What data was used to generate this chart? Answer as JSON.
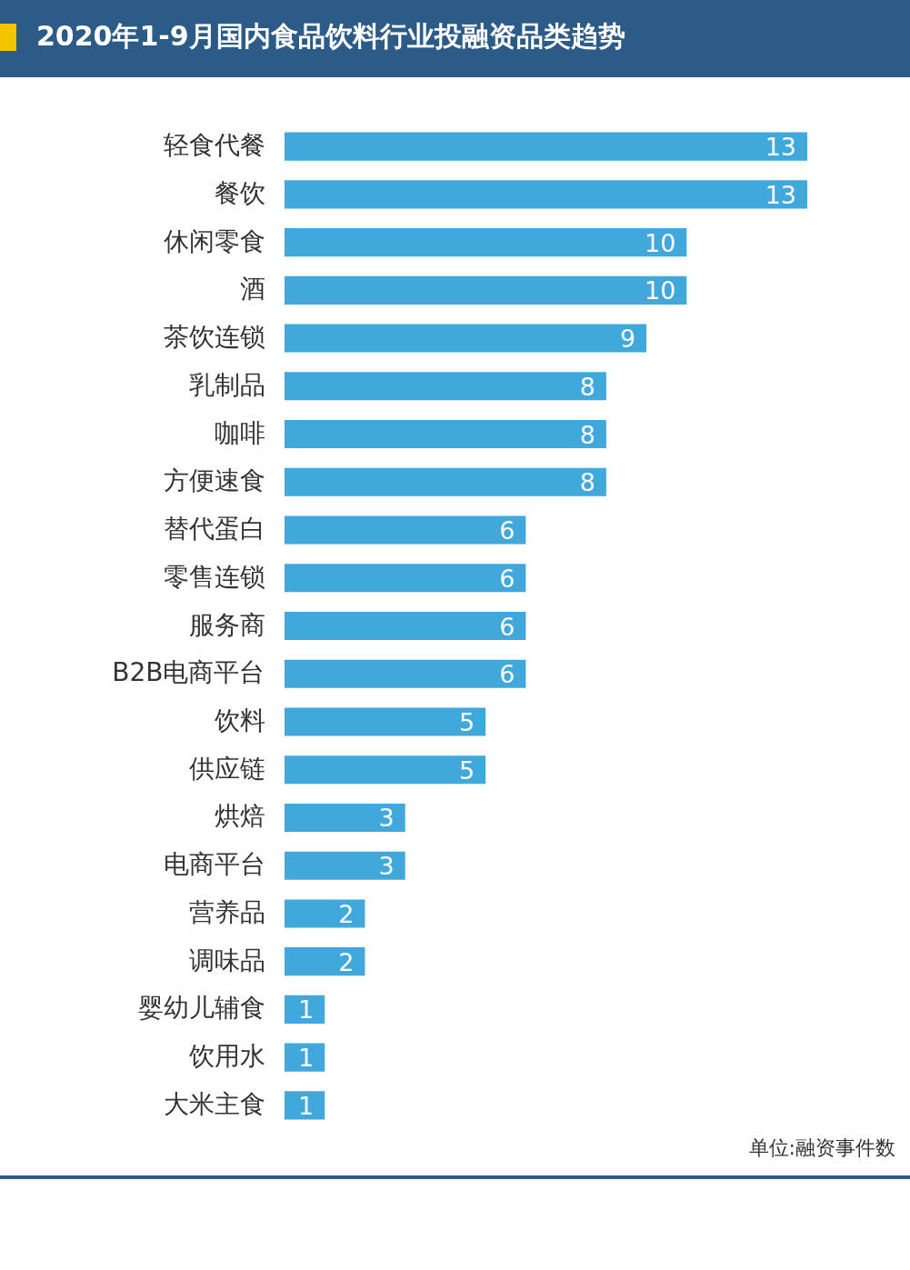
{
  "chart_data": {
    "type": "bar",
    "orientation": "horizontal",
    "data_labels": true,
    "color": "#41a8dc",
    "title": "2020年1-9月国内食品饮料行业投融资品类趋势",
    "categories": [
      "轻食代餐",
      "餐饮",
      "休闲零食",
      "酒",
      "茶饮连锁",
      "乳制品",
      "咖啡",
      "方便速食",
      "替代蛋白",
      "零售连锁",
      "服务商",
      "B2B电商平台",
      "饮料",
      "供应链",
      "烘焙",
      "电商平台",
      "营养品",
      "调味品",
      "婴幼儿辅食",
      "饮用水",
      "大米主食"
    ],
    "values": [
      13,
      13,
      10,
      10,
      9,
      8,
      8,
      8,
      6,
      6,
      6,
      6,
      5,
      5,
      3,
      3,
      2,
      2,
      1,
      1,
      1
    ],
    "annotations": [
      "单位:融资事件数"
    ]
  }
}
